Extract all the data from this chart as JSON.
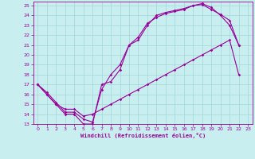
{
  "xlabel": "Windchill (Refroidissement éolien,°C)",
  "bg_color": "#c8eef0",
  "line_color": "#990099",
  "grid_color": "#a0d8d8",
  "xlim": [
    -0.5,
    23.5
  ],
  "ylim": [
    13,
    25.4
  ],
  "xticks": [
    0,
    1,
    2,
    3,
    4,
    5,
    6,
    7,
    8,
    9,
    10,
    11,
    12,
    13,
    14,
    15,
    16,
    17,
    18,
    19,
    20,
    21,
    22,
    23
  ],
  "yticks": [
    13,
    14,
    15,
    16,
    17,
    18,
    19,
    20,
    21,
    22,
    23,
    24,
    25
  ],
  "series1": [
    [
      0,
      17
    ],
    [
      1,
      16
    ],
    [
      2,
      15
    ],
    [
      3,
      14
    ],
    [
      4,
      14
    ],
    [
      5,
      13
    ],
    [
      6,
      13
    ],
    [
      7,
      17
    ],
    [
      8,
      17.3
    ],
    [
      9,
      18.5
    ],
    [
      10,
      21
    ],
    [
      11,
      21.5
    ],
    [
      12,
      23
    ],
    [
      13,
      24
    ],
    [
      14,
      24.3
    ],
    [
      15,
      24.5
    ],
    [
      16,
      24.7
    ],
    [
      17,
      25
    ],
    [
      18,
      25.2
    ],
    [
      19,
      24.8
    ],
    [
      20,
      24
    ],
    [
      21,
      23
    ],
    [
      22,
      21
    ]
  ],
  "series2": [
    [
      0,
      17
    ],
    [
      1,
      16
    ],
    [
      2,
      15
    ],
    [
      3,
      14.5
    ],
    [
      4,
      14.5
    ],
    [
      5,
      13.8
    ],
    [
      6,
      14
    ],
    [
      7,
      14.5
    ],
    [
      8,
      15
    ],
    [
      9,
      15.5
    ],
    [
      10,
      16
    ],
    [
      11,
      16.5
    ],
    [
      12,
      17
    ],
    [
      13,
      17.5
    ],
    [
      14,
      18
    ],
    [
      15,
      18.5
    ],
    [
      16,
      19
    ],
    [
      17,
      19.5
    ],
    [
      18,
      20
    ],
    [
      19,
      20.5
    ],
    [
      20,
      21
    ],
    [
      21,
      21.5
    ],
    [
      22,
      18
    ]
  ],
  "series3": [
    [
      0,
      17
    ],
    [
      1,
      16.2
    ],
    [
      2,
      15.2
    ],
    [
      3,
      14.2
    ],
    [
      4,
      14.2
    ],
    [
      5,
      13.5
    ],
    [
      6,
      13.2
    ],
    [
      7,
      16.5
    ],
    [
      8,
      18
    ],
    [
      9,
      19
    ],
    [
      10,
      21
    ],
    [
      11,
      21.8
    ],
    [
      12,
      23.2
    ],
    [
      13,
      23.8
    ],
    [
      14,
      24.2
    ],
    [
      15,
      24.4
    ],
    [
      16,
      24.6
    ],
    [
      17,
      25
    ],
    [
      18,
      25.1
    ],
    [
      19,
      24.6
    ],
    [
      20,
      24.1
    ],
    [
      21,
      23.5
    ],
    [
      22,
      21
    ]
  ]
}
